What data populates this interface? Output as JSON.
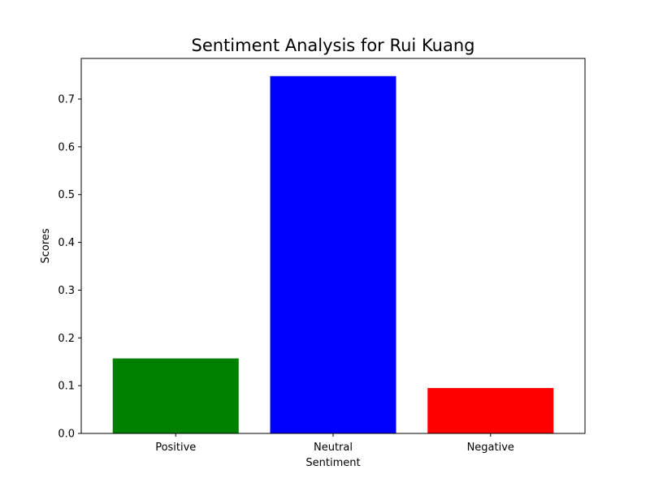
{
  "chart_data": {
    "type": "bar",
    "title": "Sentiment Analysis for Rui Kuang",
    "xlabel": "Sentiment",
    "ylabel": "Scores",
    "categories": [
      "Positive",
      "Neutral",
      "Negative"
    ],
    "values": [
      0.157,
      0.748,
      0.095
    ],
    "colors": [
      "#008000",
      "#0000ff",
      "#ff0000"
    ],
    "ylim": [
      0,
      0.785
    ],
    "yticks": [
      0.0,
      0.1,
      0.2,
      0.3,
      0.4,
      0.5,
      0.6,
      0.7
    ],
    "ytick_labels": [
      "0.0",
      "0.1",
      "0.2",
      "0.3",
      "0.4",
      "0.5",
      "0.6",
      "0.7"
    ],
    "grid": false,
    "legend": "none"
  }
}
